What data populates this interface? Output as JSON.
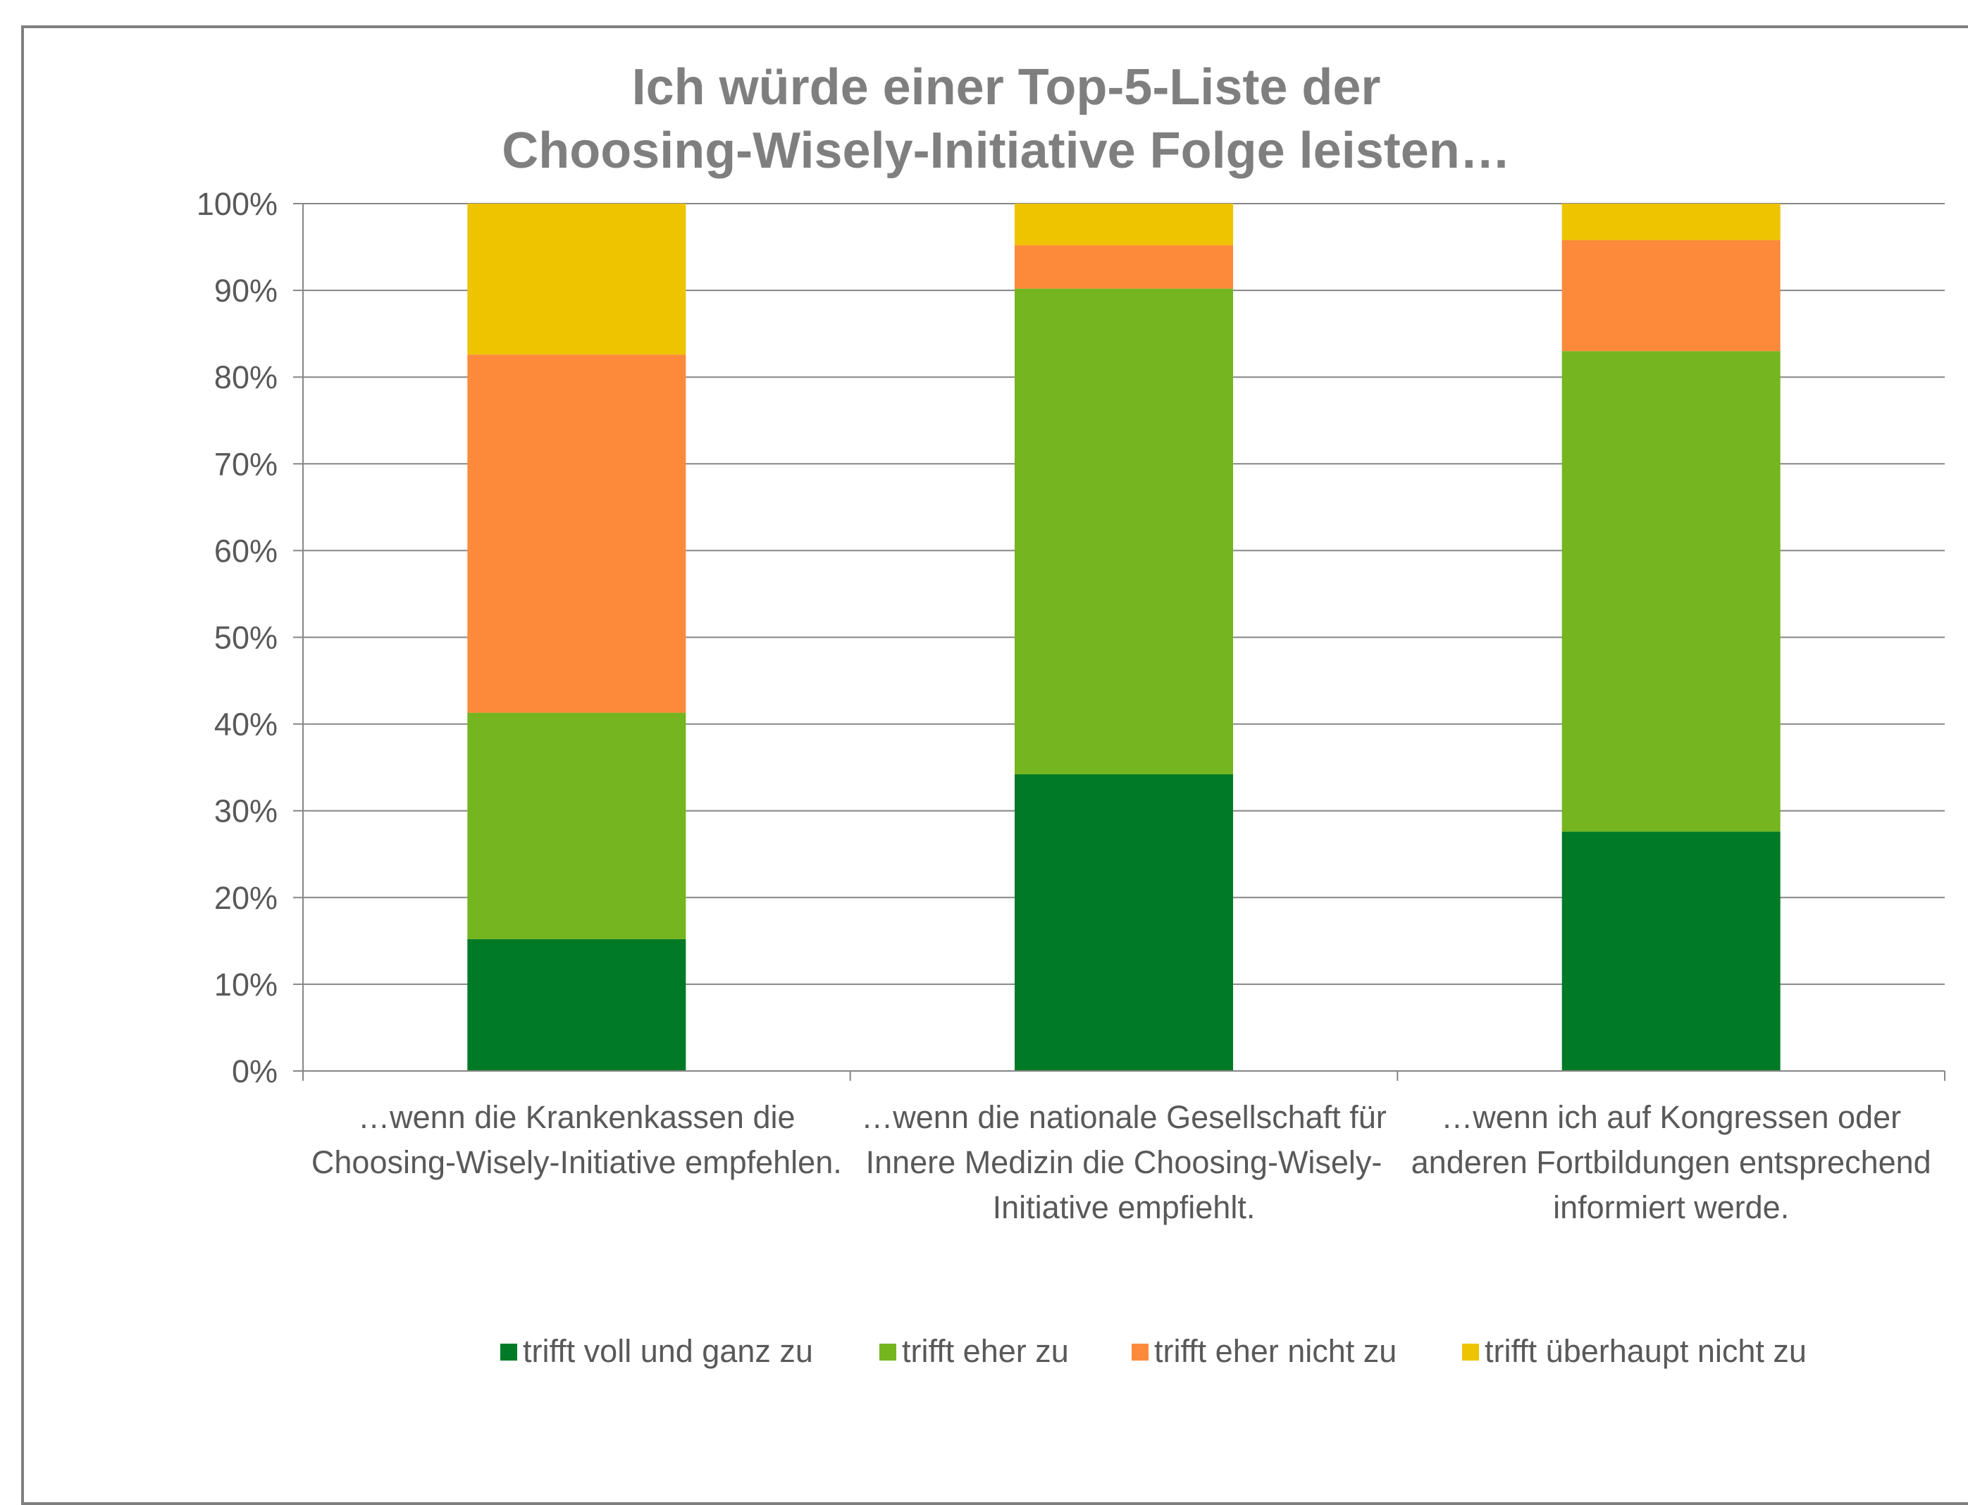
{
  "chart_data": {
    "type": "bar",
    "stacked": true,
    "percent_stacked": true,
    "title": [
      "Ich würde einer Top-5-Liste der",
      "Choosing-Wisely-Initiative Folge leisten…"
    ],
    "categories": [
      [
        "…wenn die Krankenkassen die",
        "Choosing-Wisely-Initiative empfehlen."
      ],
      [
        "…wenn die nationale Gesellschaft für",
        "Innere Medizin die Choosing-Wisely-",
        "Initiative empfiehlt."
      ],
      [
        "…wenn ich auf Kongressen oder",
        "anderen Fortbildungen entsprechend",
        "informiert werde."
      ]
    ],
    "series": [
      {
        "name": "trifft voll und ganz zu",
        "color": "#007a26",
        "values": [
          15.2,
          34.2,
          27.6
        ]
      },
      {
        "name": "trifft eher zu",
        "color": "#74b520",
        "values": [
          26.1,
          56.0,
          55.4
        ]
      },
      {
        "name": "trifft eher nicht zu",
        "color": "#fd8a3b",
        "values": [
          41.3,
          5.0,
          12.8
        ]
      },
      {
        "name": "trifft überhaupt nicht zu",
        "color": "#eec300",
        "values": [
          17.4,
          4.8,
          4.2
        ]
      }
    ],
    "ylim": [
      0,
      100
    ],
    "yticks": [
      "0%",
      "10%",
      "20%",
      "30%",
      "40%",
      "50%",
      "60%",
      "70%",
      "80%",
      "90%",
      "100%"
    ],
    "grid": true,
    "legend_position": "bottom"
  }
}
